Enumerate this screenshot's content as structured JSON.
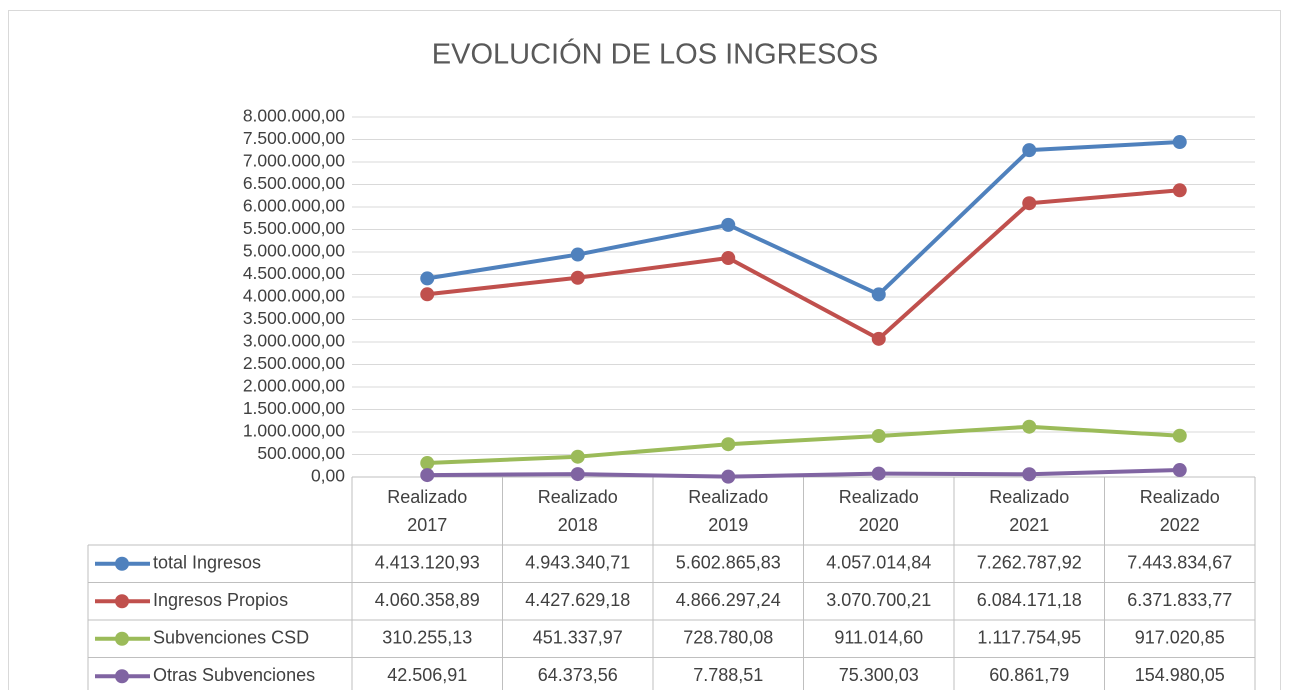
{
  "chart_data": {
    "type": "line",
    "title": "EVOLUCIÓN DE LOS INGRESOS",
    "categories": [
      "Realizado 2017",
      "Realizado 2018",
      "Realizado 2019",
      "Realizado 2020",
      "Realizado 2021",
      "Realizado 2022"
    ],
    "series": [
      {
        "name": "total Ingresos",
        "color": "#4f81bd",
        "values": [
          4413120.93,
          4943340.71,
          5602865.83,
          4057014.84,
          7262787.92,
          7443834.67
        ],
        "value_labels": [
          "4.413.120,93",
          "4.943.340,71",
          "5.602.865,83",
          "4.057.014,84",
          "7.262.787,92",
          "7.443.834,67"
        ]
      },
      {
        "name": "Ingresos Propios",
        "color": "#c0504d",
        "values": [
          4060358.89,
          4427629.18,
          4866297.24,
          3070700.21,
          6084171.18,
          6371833.77
        ],
        "value_labels": [
          "4.060.358,89",
          "4.427.629,18",
          "4.866.297,24",
          "3.070.700,21",
          "6.084.171,18",
          "6.371.833,77"
        ]
      },
      {
        "name": "Subvenciones CSD",
        "color": "#9bbb59",
        "values": [
          310255.13,
          451337.97,
          728780.08,
          911014.6,
          1117754.95,
          917020.85
        ],
        "value_labels": [
          "310.255,13",
          "451.337,97",
          "728.780,08",
          "911.014,60",
          "1.117.754,95",
          "917.020,85"
        ]
      },
      {
        "name": "Otras Subvenciones",
        "color": "#8064a2",
        "values": [
          42506.91,
          64373.56,
          7788.51,
          75300.03,
          60861.79,
          154980.05
        ],
        "value_labels": [
          "42.506,91",
          "64.373,56",
          "7.788,51",
          "75.300,03",
          "60.861,79",
          "154.980,05"
        ]
      }
    ],
    "ylim": [
      0,
      8000000
    ],
    "yticks": [
      {
        "value": 0,
        "label": "0,00"
      },
      {
        "value": 500000,
        "label": "500.000,00"
      },
      {
        "value": 1000000,
        "label": "1.000.000,00"
      },
      {
        "value": 1500000,
        "label": "1.500.000,00"
      },
      {
        "value": 2000000,
        "label": "2.000.000,00"
      },
      {
        "value": 2500000,
        "label": "2.500.000,00"
      },
      {
        "value": 3000000,
        "label": "3.000.000,00"
      },
      {
        "value": 3500000,
        "label": "3.500.000,00"
      },
      {
        "value": 4000000,
        "label": "4.000.000,00"
      },
      {
        "value": 4500000,
        "label": "4.500.000,00"
      },
      {
        "value": 5000000,
        "label": "5.000.000,00"
      },
      {
        "value": 5500000,
        "label": "5.500.000,00"
      },
      {
        "value": 6000000,
        "label": "6.000.000,00"
      },
      {
        "value": 6500000,
        "label": "6.500.000,00"
      },
      {
        "value": 7000000,
        "label": "7.000.000,00"
      },
      {
        "value": 7500000,
        "label": "7.500.000,00"
      },
      {
        "value": 8000000,
        "label": "8.000.000,00"
      }
    ],
    "grid": true
  }
}
